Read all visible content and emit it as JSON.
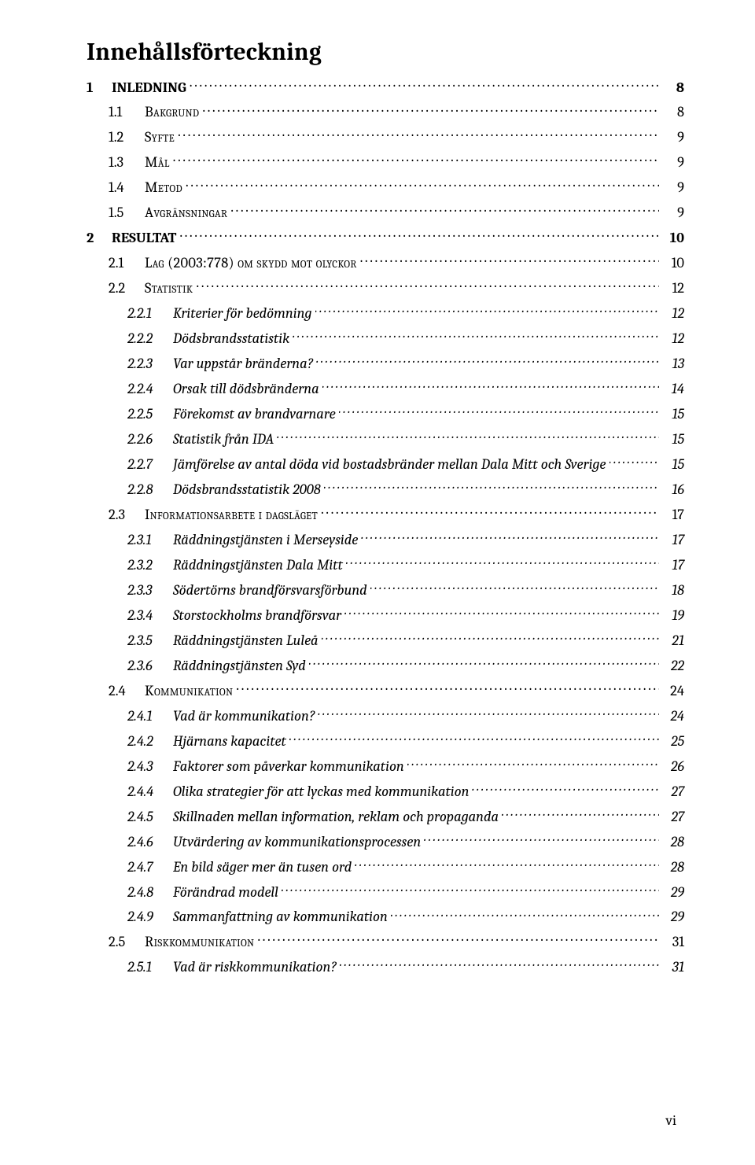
{
  "title": "Innehållsförteckning",
  "page_number_footer": "vi",
  "font": {
    "family": "Cambria / Georgia serif",
    "title_size_pt": 23,
    "body_size_pt": 14,
    "color": "#000000",
    "background": "#ffffff",
    "leader_letter_spacing": 2.5
  },
  "entries": [
    {
      "level": 1,
      "num": "1",
      "label": "INLEDNING",
      "page": "8"
    },
    {
      "level": 2,
      "num": "1.1",
      "label": "Bakgrund",
      "page": "8"
    },
    {
      "level": 2,
      "num": "1.2",
      "label": "Syfte",
      "page": "9"
    },
    {
      "level": 2,
      "num": "1.3",
      "label": "Mål",
      "page": "9"
    },
    {
      "level": 2,
      "num": "1.4",
      "label": "Metod",
      "page": "9"
    },
    {
      "level": 2,
      "num": "1.5",
      "label": "Avgränsningar",
      "page": "9"
    },
    {
      "level": 1,
      "num": "2",
      "label": "RESULTAT",
      "page": "10"
    },
    {
      "level": 2,
      "num": "2.1",
      "label": "Lag (2003:778) om skydd mot olyckor",
      "page": "10"
    },
    {
      "level": 2,
      "num": "2.2",
      "label": "Statistik",
      "page": "12"
    },
    {
      "level": 3,
      "num": "2.2.1",
      "label": "Kriterier för bedömning",
      "page": "12"
    },
    {
      "level": 3,
      "num": "2.2.2",
      "label": "Dödsbrandsstatistik",
      "page": "12"
    },
    {
      "level": 3,
      "num": "2.2.3",
      "label": "Var uppstår bränderna?",
      "page": "13"
    },
    {
      "level": 3,
      "num": "2.2.4",
      "label": "Orsak till dödsbränderna",
      "page": "14"
    },
    {
      "level": 3,
      "num": "2.2.5",
      "label": "Förekomst av brandvarnare",
      "page": "15"
    },
    {
      "level": 3,
      "num": "2.2.6",
      "label": "Statistik från IDA",
      "page": "15"
    },
    {
      "level": 3,
      "num": "2.2.7",
      "label": "Jämförelse av antal döda vid bostadsbränder mellan Dala Mitt och Sverige",
      "page": "15"
    },
    {
      "level": 3,
      "num": "2.2.8",
      "label": "Dödsbrandsstatistik 2008",
      "page": "16"
    },
    {
      "level": 2,
      "num": "2.3",
      "label": "Informationsarbete i dagsläget",
      "page": "17"
    },
    {
      "level": 3,
      "num": "2.3.1",
      "label": "Räddningstjänsten i Merseyside",
      "page": "17"
    },
    {
      "level": 3,
      "num": "2.3.2",
      "label": "Räddningstjänsten Dala Mitt",
      "page": "17"
    },
    {
      "level": 3,
      "num": "2.3.3",
      "label": "Södertörns brandförsvarsförbund",
      "page": "18"
    },
    {
      "level": 3,
      "num": "2.3.4",
      "label": "Storstockholms brandförsvar",
      "page": "19"
    },
    {
      "level": 3,
      "num": "2.3.5",
      "label": "Räddningstjänsten Luleå",
      "page": "21"
    },
    {
      "level": 3,
      "num": "2.3.6",
      "label": "Räddningstjänsten Syd",
      "page": "22"
    },
    {
      "level": 2,
      "num": "2.4",
      "label": "Kommunikation",
      "page": "24"
    },
    {
      "level": 3,
      "num": "2.4.1",
      "label": "Vad är kommunikation?",
      "page": "24"
    },
    {
      "level": 3,
      "num": "2.4.2",
      "label": "Hjärnans kapacitet",
      "page": "25"
    },
    {
      "level": 3,
      "num": "2.4.3",
      "label": "Faktorer som påverkar kommunikation",
      "page": "26"
    },
    {
      "level": 3,
      "num": "2.4.4",
      "label": "Olika strategier för att lyckas med kommunikation",
      "page": "27"
    },
    {
      "level": 3,
      "num": "2.4.5",
      "label": "Skillnaden mellan information, reklam och propaganda",
      "page": "27"
    },
    {
      "level": 3,
      "num": "2.4.6",
      "label": "Utvärdering av kommunikationsprocessen",
      "page": "28"
    },
    {
      "level": 3,
      "num": "2.4.7",
      "label": "En bild säger mer än tusen ord",
      "page": "28"
    },
    {
      "level": 3,
      "num": "2.4.8",
      "label": "Förändrad modell",
      "page": "29"
    },
    {
      "level": 3,
      "num": "2.4.9",
      "label": "Sammanfattning av kommunikation",
      "page": "29"
    },
    {
      "level": 2,
      "num": "2.5",
      "label": "Riskkommunikation",
      "page": "31"
    },
    {
      "level": 3,
      "num": "2.5.1",
      "label": "Vad är riskkommunikation?",
      "page": "31"
    }
  ]
}
